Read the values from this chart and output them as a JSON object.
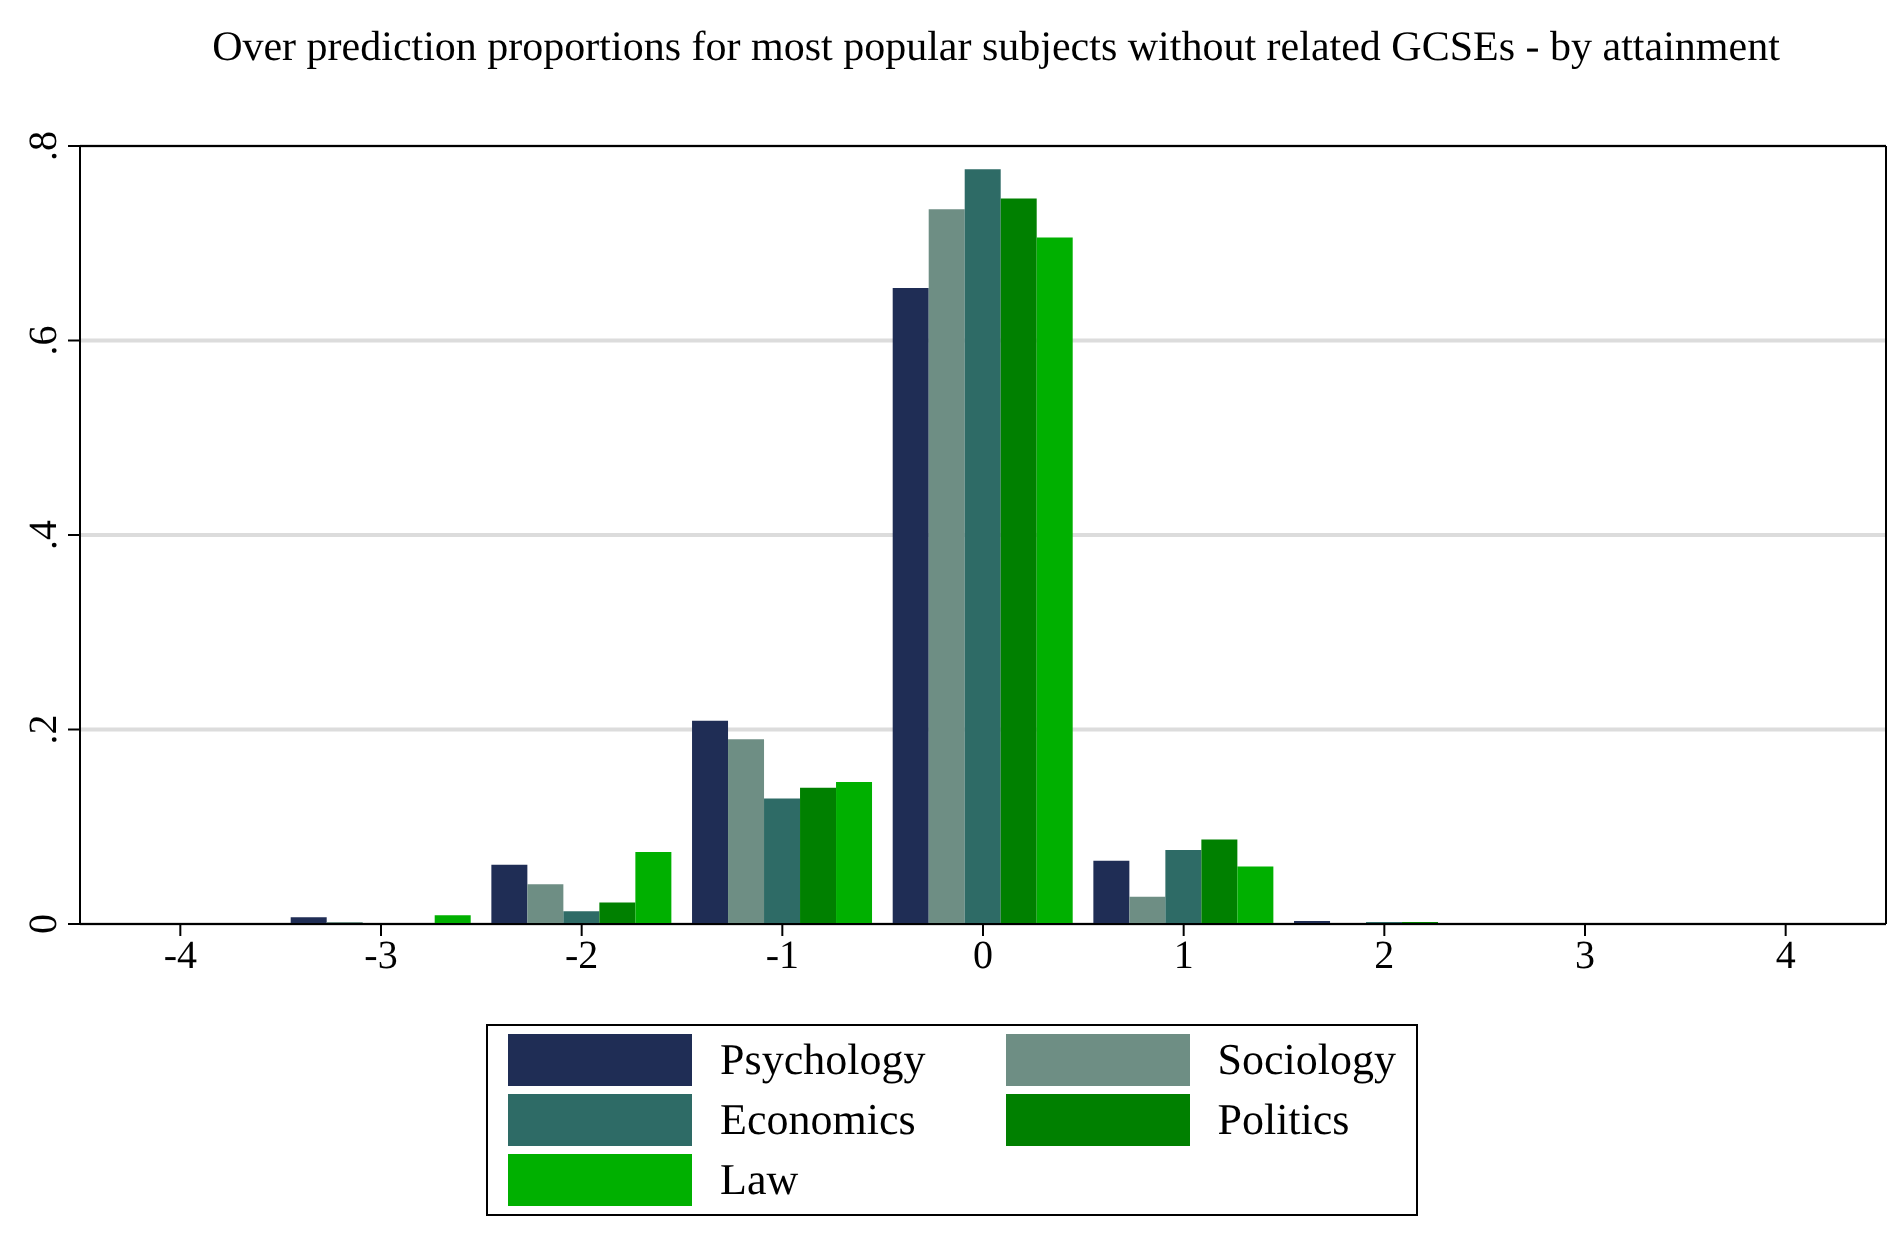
{
  "chart_data": {
    "type": "bar",
    "title": "Over prediction proportions for most popular subjects without related GCSEs - by attainment",
    "categories": [
      "-4",
      "-3",
      "-2",
      "-1",
      "0",
      "1",
      "2",
      "3",
      "4"
    ],
    "series": [
      {
        "name": "Psychology",
        "color": "#1f2d55",
        "values": [
          0,
          0.007,
          0.061,
          0.209,
          0.654,
          0.065,
          0.003,
          0,
          0
        ]
      },
      {
        "name": "Sociology",
        "color": "#6e8e84",
        "values": [
          0,
          0.002,
          0.041,
          0.19,
          0.735,
          0.028,
          0,
          0,
          0
        ]
      },
      {
        "name": "Economics",
        "color": "#2e6b66",
        "values": [
          0,
          0,
          0.013,
          0.129,
          0.776,
          0.076,
          0.002,
          0,
          0
        ]
      },
      {
        "name": "Politics",
        "color": "#008000",
        "values": [
          0,
          0,
          0.022,
          0.14,
          0.746,
          0.087,
          0.002,
          0,
          0
        ]
      },
      {
        "name": "Law",
        "color": "#00b000",
        "values": [
          0,
          0.009,
          0.074,
          0.146,
          0.706,
          0.059,
          0,
          0,
          0
        ]
      }
    ],
    "ylim": [
      0,
      0.8
    ],
    "yticks": [
      {
        "value": 0,
        "label": "0"
      },
      {
        "value": 0.2,
        "label": ".2"
      },
      {
        "value": 0.4,
        "label": ".4"
      },
      {
        "value": 0.6,
        "label": ".6"
      },
      {
        "value": 0.8,
        "label": ".8"
      }
    ],
    "grid": "y",
    "legend": "bottom"
  }
}
